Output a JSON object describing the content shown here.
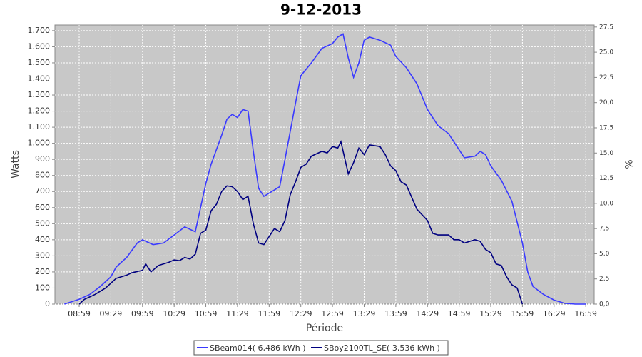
{
  "chart_data": {
    "type": "line",
    "title": "9-12-2013",
    "x_label": "Période",
    "y_label": "Watts",
    "y2_label": "%",
    "xlim": [
      516,
      1027
    ],
    "ylim": [
      0,
      1735
    ],
    "y2lim": [
      0,
      27.7
    ],
    "grid": true,
    "legend": "bottom",
    "xticks": [
      {
        "value": 539,
        "label": "08:59"
      },
      {
        "value": 569,
        "label": "09:29"
      },
      {
        "value": 599,
        "label": "09:59"
      },
      {
        "value": 629,
        "label": "10:29"
      },
      {
        "value": 659,
        "label": "10:59"
      },
      {
        "value": 689,
        "label": "11:29"
      },
      {
        "value": 719,
        "label": "11:59"
      },
      {
        "value": 749,
        "label": "12:29"
      },
      {
        "value": 779,
        "label": "12:59"
      },
      {
        "value": 809,
        "label": "13:29"
      },
      {
        "value": 839,
        "label": "13:59"
      },
      {
        "value": 869,
        "label": "14:29"
      },
      {
        "value": 899,
        "label": "14:59"
      },
      {
        "value": 929,
        "label": "15:29"
      },
      {
        "value": 959,
        "label": "15:59"
      },
      {
        "value": 989,
        "label": "16:29"
      },
      {
        "value": 1019,
        "label": "16:59"
      }
    ],
    "yticks": [
      0,
      100,
      200,
      300,
      400,
      500,
      600,
      700,
      800,
      900,
      {
        "value": 1000,
        "label": "1.000"
      },
      {
        "value": 1100,
        "label": "1.100"
      },
      {
        "value": 1200,
        "label": "1.200"
      },
      {
        "value": 1300,
        "label": "1.300"
      },
      {
        "value": 1400,
        "label": "1.400"
      },
      {
        "value": 1500,
        "label": "1.500"
      },
      {
        "value": 1600,
        "label": "1.600"
      },
      {
        "value": 1700,
        "label": "1.700"
      }
    ],
    "y2ticks": [
      {
        "value": 0,
        "label": "0,0"
      },
      {
        "value": 2.5,
        "label": "2,5"
      },
      {
        "value": 5,
        "label": "5,0"
      },
      {
        "value": 7.5,
        "label": "7,5"
      },
      {
        "value": 10,
        "label": "10,0"
      },
      {
        "value": 12.5,
        "label": "12,5"
      },
      {
        "value": 15,
        "label": "15,0"
      },
      {
        "value": 17.5,
        "label": "17,5"
      },
      {
        "value": 20,
        "label": "20,0"
      },
      {
        "value": 22.5,
        "label": "22,5"
      },
      {
        "value": 25,
        "label": "25,0"
      },
      {
        "value": 27.5,
        "label": "27,5"
      }
    ],
    "series": [
      {
        "name": "SBeam014( 6,486 kWh )",
        "color": "#3a3aff",
        "x": [
          525,
          539,
          549,
          559,
          569,
          574,
          584,
          594,
          599,
          609,
          619,
          629,
          639,
          649,
          654,
          659,
          664,
          674,
          679,
          684,
          689,
          694,
          699,
          704,
          709,
          714,
          719,
          729,
          734,
          744,
          749,
          759,
          769,
          779,
          784,
          789,
          794,
          799,
          804,
          809,
          814,
          824,
          834,
          839,
          849,
          859,
          869,
          879,
          889,
          899,
          904,
          914,
          919,
          924,
          929,
          939,
          949,
          959,
          964,
          969,
          979,
          989,
          999,
          1009,
          1019
        ],
        "values": [
          0,
          30,
          60,
          110,
          170,
          230,
          290,
          380,
          400,
          370,
          380,
          430,
          480,
          450,
          600,
          750,
          870,
          1050,
          1150,
          1180,
          1160,
          1210,
          1200,
          950,
          720,
          670,
          690,
          730,
          900,
          1250,
          1420,
          1500,
          1590,
          1620,
          1660,
          1680,
          1530,
          1410,
          1500,
          1640,
          1660,
          1640,
          1610,
          1540,
          1470,
          1370,
          1210,
          1110,
          1060,
          960,
          910,
          920,
          950,
          930,
          860,
          770,
          640,
          380,
          200,
          110,
          60,
          25,
          5,
          0,
          0
        ]
      },
      {
        "name": "SBoy2100TL_SE( 3,536 kWh )",
        "color": "#000080",
        "x": [
          539,
          544,
          554,
          564,
          569,
          574,
          584,
          589,
          599,
          602,
          607,
          614,
          624,
          629,
          634,
          639,
          644,
          649,
          654,
          659,
          664,
          669,
          674,
          679,
          684,
          689,
          694,
          699,
          704,
          709,
          714,
          719,
          724,
          729,
          734,
          739,
          744,
          749,
          754,
          759,
          769,
          774,
          779,
          784,
          787,
          794,
          799,
          804,
          809,
          814,
          824,
          829,
          834,
          839,
          844,
          849,
          859,
          869,
          874,
          879,
          889,
          894,
          899,
          904,
          909,
          914,
          919,
          924,
          929,
          934,
          939,
          944,
          949,
          954,
          959
        ],
        "values": [
          0,
          30,
          60,
          100,
          130,
          160,
          180,
          195,
          210,
          250,
          200,
          240,
          260,
          275,
          270,
          290,
          280,
          310,
          440,
          460,
          580,
          620,
          700,
          735,
          730,
          700,
          650,
          670,
          500,
          380,
          370,
          420,
          470,
          450,
          520,
          680,
          760,
          850,
          870,
          920,
          950,
          940,
          980,
          970,
          1010,
          810,
          880,
          970,
          930,
          990,
          980,
          930,
          860,
          830,
          760,
          740,
          590,
          520,
          440,
          430,
          430,
          400,
          400,
          380,
          390,
          400,
          390,
          340,
          320,
          250,
          240,
          170,
          120,
          100,
          0
        ]
      }
    ]
  }
}
